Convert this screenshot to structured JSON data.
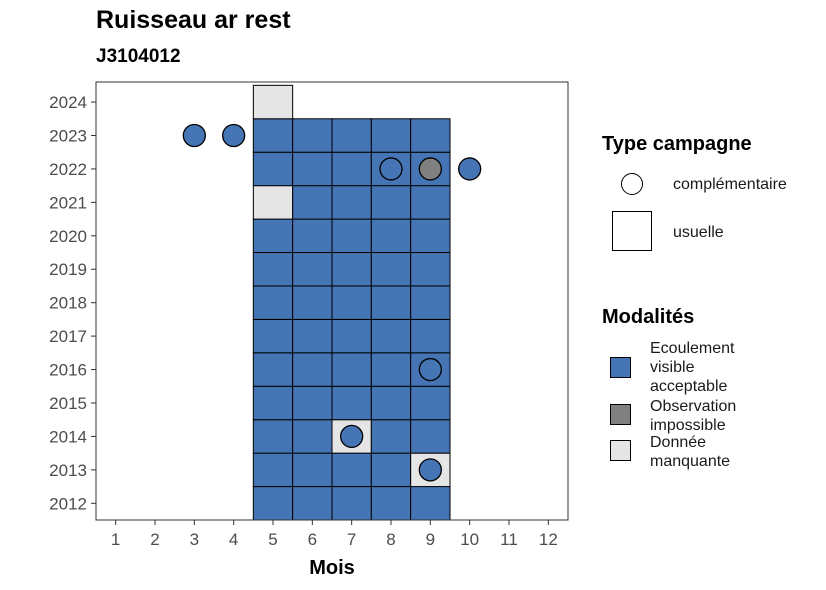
{
  "chart_data": {
    "type": "tile",
    "title": "Ruisseau ar rest",
    "subtitle": "J3104012",
    "xlabel": "Mois",
    "ylabel": "",
    "x_ticks": [
      1,
      2,
      3,
      4,
      5,
      6,
      7,
      8,
      9,
      10,
      11,
      12
    ],
    "y_ticks": [
      2012,
      2013,
      2014,
      2015,
      2016,
      2017,
      2018,
      2019,
      2020,
      2021,
      2022,
      2023,
      2024
    ],
    "xlim": [
      0.5,
      12.5
    ],
    "ylim": [
      2011.5,
      2024.6
    ],
    "colors": {
      "Ecoulement visible acceptable": "#4575b4",
      "Observation impossible": "#808080",
      "Donnée manquante": "#e5e5e5"
    },
    "usuelle": [
      {
        "year": 2012,
        "months": [
          5,
          6,
          7,
          8,
          9
        ],
        "modalites": [
          "Ecoulement visible acceptable",
          "Ecoulement visible acceptable",
          "Ecoulement visible acceptable",
          "Ecoulement visible acceptable",
          "Ecoulement visible acceptable"
        ]
      },
      {
        "year": 2013,
        "months": [
          5,
          6,
          7,
          8,
          9
        ],
        "modalites": [
          "Ecoulement visible acceptable",
          "Ecoulement visible acceptable",
          "Ecoulement visible acceptable",
          "Ecoulement visible acceptable",
          "Donnée manquante"
        ]
      },
      {
        "year": 2014,
        "months": [
          5,
          6,
          7,
          8,
          9
        ],
        "modalites": [
          "Ecoulement visible acceptable",
          "Ecoulement visible acceptable",
          "Donnée manquante",
          "Ecoulement visible acceptable",
          "Ecoulement visible acceptable"
        ]
      },
      {
        "year": 2015,
        "months": [
          5,
          6,
          7,
          8,
          9
        ],
        "modalites": [
          "Ecoulement visible acceptable",
          "Ecoulement visible acceptable",
          "Ecoulement visible acceptable",
          "Ecoulement visible acceptable",
          "Ecoulement visible acceptable"
        ]
      },
      {
        "year": 2016,
        "months": [
          5,
          6,
          7,
          8,
          9
        ],
        "modalites": [
          "Ecoulement visible acceptable",
          "Ecoulement visible acceptable",
          "Ecoulement visible acceptable",
          "Ecoulement visible acceptable",
          "Ecoulement visible acceptable"
        ]
      },
      {
        "year": 2017,
        "months": [
          5,
          6,
          7,
          8,
          9
        ],
        "modalites": [
          "Ecoulement visible acceptable",
          "Ecoulement visible acceptable",
          "Ecoulement visible acceptable",
          "Ecoulement visible acceptable",
          "Ecoulement visible acceptable"
        ]
      },
      {
        "year": 2018,
        "months": [
          5,
          6,
          7,
          8,
          9
        ],
        "modalites": [
          "Ecoulement visible acceptable",
          "Ecoulement visible acceptable",
          "Ecoulement visible acceptable",
          "Ecoulement visible acceptable",
          "Ecoulement visible acceptable"
        ]
      },
      {
        "year": 2019,
        "months": [
          5,
          6,
          7,
          8,
          9
        ],
        "modalites": [
          "Ecoulement visible acceptable",
          "Ecoulement visible acceptable",
          "Ecoulement visible acceptable",
          "Ecoulement visible acceptable",
          "Ecoulement visible acceptable"
        ]
      },
      {
        "year": 2020,
        "months": [
          5,
          6,
          7,
          8,
          9
        ],
        "modalites": [
          "Ecoulement visible acceptable",
          "Ecoulement visible acceptable",
          "Ecoulement visible acceptable",
          "Ecoulement visible acceptable",
          "Ecoulement visible acceptable"
        ]
      },
      {
        "year": 2021,
        "months": [
          5,
          6,
          7,
          8,
          9
        ],
        "modalites": [
          "Donnée manquante",
          "Ecoulement visible acceptable",
          "Ecoulement visible acceptable",
          "Ecoulement visible acceptable",
          "Ecoulement visible acceptable"
        ]
      },
      {
        "year": 2022,
        "months": [
          5,
          6,
          7,
          8,
          9
        ],
        "modalites": [
          "Ecoulement visible acceptable",
          "Ecoulement visible acceptable",
          "Ecoulement visible acceptable",
          "Ecoulement visible acceptable",
          "Ecoulement visible acceptable"
        ]
      },
      {
        "year": 2023,
        "months": [
          5,
          6,
          7,
          8,
          9
        ],
        "modalites": [
          "Ecoulement visible acceptable",
          "Ecoulement visible acceptable",
          "Ecoulement visible acceptable",
          "Ecoulement visible acceptable",
          "Ecoulement visible acceptable"
        ]
      },
      {
        "year": 2024,
        "months": [
          5
        ],
        "modalites": [
          "Donnée manquante"
        ]
      }
    ],
    "complementaire": [
      {
        "year": 2023,
        "month": 3,
        "modalite": "Ecoulement visible acceptable"
      },
      {
        "year": 2023,
        "month": 4,
        "modalite": "Ecoulement visible acceptable"
      },
      {
        "year": 2022,
        "month": 8,
        "modalite": "Ecoulement visible acceptable"
      },
      {
        "year": 2022,
        "month": 9,
        "modalite": "Observation impossible"
      },
      {
        "year": 2022,
        "month": 10,
        "modalite": "Ecoulement visible acceptable"
      },
      {
        "year": 2016,
        "month": 9,
        "modalite": "Ecoulement visible acceptable"
      },
      {
        "year": 2014,
        "month": 7,
        "modalite": "Ecoulement visible acceptable"
      },
      {
        "year": 2013,
        "month": 9,
        "modalite": "Ecoulement visible acceptable"
      }
    ]
  },
  "legend": {
    "type_title": "Type campagne",
    "type_items": [
      "complémentaire",
      "usuelle"
    ],
    "mod_title": "Modalités",
    "mod_items": [
      {
        "label": "Ecoulement visible acceptable",
        "color": "#4575b4"
      },
      {
        "label": "Observation impossible",
        "color": "#808080"
      },
      {
        "label": "Donnée manquante",
        "color": "#e5e5e5"
      }
    ]
  }
}
